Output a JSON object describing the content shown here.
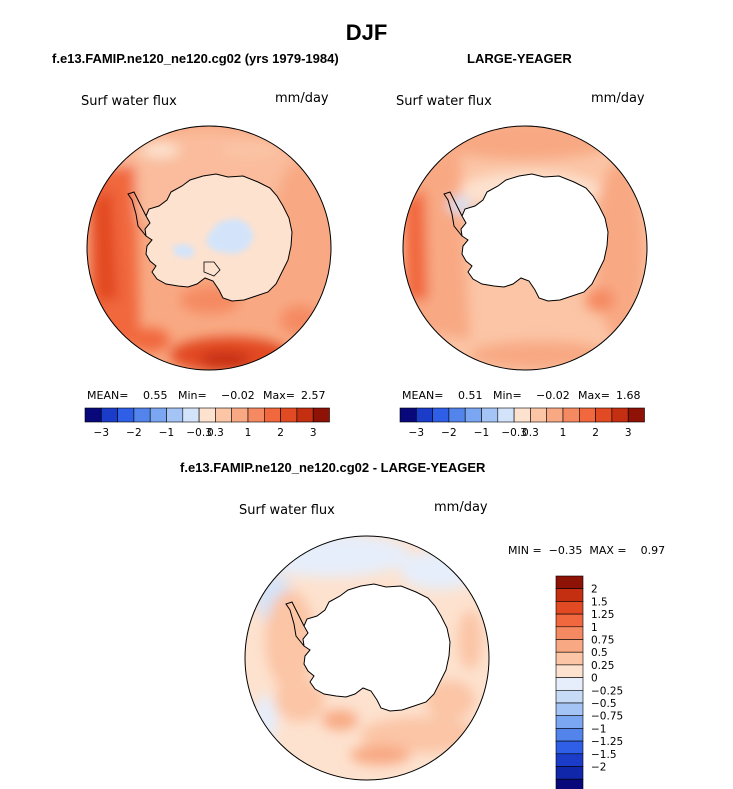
{
  "page_title": "DJF",
  "panels": [
    {
      "subtitle": "f.e13.FAMIP.ne120_ne120.cg02 (yrs 1979-1984)",
      "variable": "Surf water flux",
      "units": "mm/day",
      "mean_label": "MEAN=",
      "mean": "0.55",
      "min_label": "Min=",
      "min": "−0.02",
      "max_label": "Max=",
      "max": "2.57"
    },
    {
      "subtitle": "LARGE-YEAGER",
      "variable": "Surf water flux",
      "units": "mm/day",
      "mean_label": "MEAN=",
      "mean": "0.51",
      "min_label": "Min=",
      "min": "−0.02",
      "max_label": "Max=",
      "max": "1.68"
    },
    {
      "subtitle": "f.e13.FAMIP.ne120_ne120.cg02 - LARGE-YEAGER",
      "variable": "Surf water flux",
      "units": "mm/day",
      "minmax": "MIN =  −0.35  MAX =    0.97"
    }
  ],
  "colorbar_main": {
    "colors": [
      "#08087a",
      "#1a3cc8",
      "#2f5fe6",
      "#5284ec",
      "#7aa6f2",
      "#a4c4f6",
      "#d3e4fa",
      "#fde2cf",
      "#fbc5a6",
      "#f8a983",
      "#f58a62",
      "#f1683e",
      "#e24a23",
      "#c42f12",
      "#8e1205"
    ],
    "labels": [
      "−3",
      "−2",
      "−1",
      "−0.3",
      "0.3",
      "1",
      "2",
      "3"
    ]
  },
  "colorbar_diff": {
    "colors": [
      "#8e1205",
      "#c42f12",
      "#e24a23",
      "#f1683e",
      "#f58a62",
      "#f8a983",
      "#fbc5a6",
      "#fde2cf",
      "#e6eefb",
      "#c7dbf7",
      "#a4c4f6",
      "#7aa6f2",
      "#5284ec",
      "#2f5fe6",
      "#1a3cc8",
      "#0f27a8",
      "#08087a"
    ],
    "labels": [
      "2",
      "1.5",
      "1.25",
      "1",
      "0.75",
      "0.5",
      "0.25",
      "0",
      "−0.25",
      "−0.5",
      "−0.75",
      "−1",
      "−1.25",
      "−1.5",
      "−2"
    ]
  }
}
